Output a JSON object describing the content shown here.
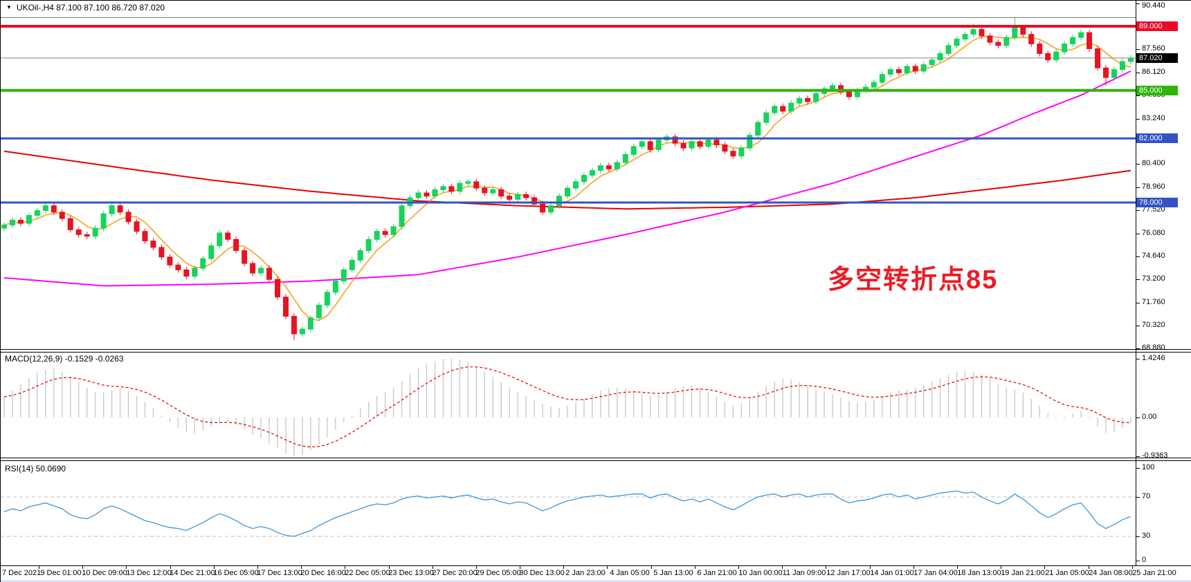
{
  "title": {
    "dropdown_icon": "▼",
    "symbol_line": "UKOil-,H4  87.100 87.100 86.720 87.020"
  },
  "annotation": {
    "text": "多空转折点85",
    "color": "#ed1c24"
  },
  "colors": {
    "candle_up": "#17d35c",
    "candle_down": "#e51420",
    "ma_fast": "#f7a21b",
    "ma_mid": "#ff00ff",
    "ma_slow": "#e60000",
    "hline_red": "#ec0927",
    "hline_green": "#2fb50a",
    "hline_blue": "#3352c8",
    "current_price_line": "#808080",
    "macd_histogram": "#c9c9c9",
    "macd_signal": "#e00000",
    "rsi_line": "#3a96dd",
    "rsi_levels": "#c0c0c0",
    "label_box_black": "#000000"
  },
  "chart_data": {
    "type": "candlestick",
    "symbol": "UKOil",
    "timeframe": "H4",
    "ohlc_current": {
      "open": 87.1,
      "high": 87.1,
      "low": 86.72,
      "close": 87.02
    },
    "current_price": {
      "value": 87.02,
      "label": "87.020"
    },
    "price_axis_ticks": [
      {
        "label": "90.440",
        "value": 90.44
      },
      {
        "label": "87.560",
        "value": 87.56
      },
      {
        "label": "86.120",
        "value": 86.12
      },
      {
        "label": "84.680",
        "value": 84.68
      },
      {
        "label": "83.240",
        "value": 83.24
      },
      {
        "label": "81.840",
        "value": 81.84
      },
      {
        "label": "80.400",
        "value": 80.4
      },
      {
        "label": "78.960",
        "value": 78.96
      },
      {
        "label": "77.520",
        "value": 77.52
      },
      {
        "label": "76.080",
        "value": 76.08
      },
      {
        "label": "74.640",
        "value": 74.64
      },
      {
        "label": "73.200",
        "value": 73.2
      },
      {
        "label": "71.760",
        "value": 71.76
      },
      {
        "label": "70.320",
        "value": 70.32
      },
      {
        "label": "68.880",
        "value": 68.88
      }
    ],
    "hlines": [
      {
        "price": 89.0,
        "label": "89.000",
        "color": "#ec0927",
        "thickness": 4
      },
      {
        "price": 85.0,
        "label": "85.000",
        "color": "#2fb50a",
        "thickness": 4
      },
      {
        "price": 82.0,
        "label": "82.000",
        "color": "#3352c8",
        "thickness": 3
      },
      {
        "price": 78.0,
        "label": "78.000",
        "color": "#3352c8",
        "thickness": 3
      }
    ],
    "x_labels": [
      "7 Dec 2021",
      "9 Dec 01:00",
      "10 Dec 09:00",
      "13 Dec 12:00",
      "14 Dec 21:00",
      "16 Dec 05:00",
      "17 Dec 13:00",
      "20 Dec 16:00",
      "22 Dec 05:00",
      "23 Dec 13:00",
      "27 Dec 20:00",
      "29 Dec 05:00",
      "30 Dec 13:00",
      "2 Jan 23:00",
      "4 Jan 05:00",
      "5 Jan 13:00",
      "6 Jan 21:00",
      "10 Jan 00:00",
      "11 Jan 09:00",
      "12 Jan 17:00",
      "14 Jan 01:00",
      "17 Jan 04:00",
      "18 Jan 13:00",
      "19 Jan 21:00",
      "21 Jan 05:00",
      "24 Jan 08:00",
      "25 Jan 21:00"
    ],
    "closes": [
      76.6,
      76.9,
      76.7,
      77.2,
      77.5,
      77.8,
      77.4,
      77.0,
      76.3,
      76.0,
      75.9,
      76.4,
      77.3,
      77.8,
      77.4,
      76.8,
      76.2,
      75.6,
      75.2,
      74.6,
      74.1,
      73.8,
      73.4,
      73.9,
      74.5,
      75.3,
      76.1,
      75.7,
      75.0,
      74.2,
      73.6,
      73.9,
      73.2,
      72.1,
      70.9,
      69.8,
      70.1,
      70.8,
      71.6,
      72.4,
      73.1,
      73.8,
      74.4,
      75.0,
      75.7,
      76.2,
      76.0,
      76.5,
      77.8,
      78.3,
      78.6,
      78.4,
      78.8,
      79.0,
      78.7,
      79.2,
      79.3,
      78.9,
      78.6,
      78.8,
      78.4,
      78.2,
      78.5,
      78.3,
      77.9,
      77.4,
      77.8,
      78.4,
      78.9,
      79.3,
      79.7,
      80.0,
      80.3,
      80.1,
      80.5,
      81.0,
      81.5,
      81.8,
      81.3,
      81.9,
      82.1,
      81.7,
      81.4,
      81.8,
      81.5,
      81.9,
      81.6,
      81.2,
      80.9,
      81.4,
      82.2,
      83.0,
      83.6,
      84.0,
      83.7,
      84.2,
      84.5,
      84.3,
      84.8,
      85.1,
      85.3,
      84.9,
      84.6,
      85.0,
      85.2,
      85.5,
      86.0,
      86.3,
      86.1,
      86.5,
      86.2,
      86.6,
      86.9,
      87.3,
      87.8,
      88.2,
      88.5,
      88.8,
      88.4,
      88.0,
      87.8,
      88.3,
      88.9,
      88.5,
      87.9,
      87.3,
      86.9,
      87.4,
      87.9,
      88.3,
      88.6,
      87.6,
      86.4,
      85.8,
      86.3,
      86.8,
      87.02
    ],
    "wick": 0.18,
    "wick_overrides": {
      "35": {
        "low": 69.4
      },
      "117": {
        "high": 89.15
      },
      "122": {
        "high": 89.85
      },
      "133": {
        "low": 85.3
      }
    },
    "ma_mid_anchors": [
      [
        0,
        73.3
      ],
      [
        12,
        72.8
      ],
      [
        25,
        72.9
      ],
      [
        37,
        73.1
      ],
      [
        50,
        73.5
      ],
      [
        62,
        74.6
      ],
      [
        75,
        76.0
      ],
      [
        87,
        77.4
      ],
      [
        100,
        79.2
      ],
      [
        112,
        81.2
      ],
      [
        118,
        82.2
      ],
      [
        124,
        83.5
      ],
      [
        130,
        84.7
      ],
      [
        136,
        86.2
      ]
    ],
    "ma_slow_anchors": [
      [
        0,
        81.2
      ],
      [
        15,
        80.1
      ],
      [
        25,
        79.4
      ],
      [
        37,
        78.7
      ],
      [
        50,
        78.1
      ],
      [
        62,
        77.8
      ],
      [
        75,
        77.6
      ],
      [
        87,
        77.7
      ],
      [
        100,
        77.9
      ],
      [
        110,
        78.3
      ],
      [
        120,
        78.9
      ],
      [
        128,
        79.4
      ],
      [
        136,
        80.0
      ]
    ],
    "indicators": {
      "macd": {
        "label": "MACD(12,26,9) -0.1529 -0.0263",
        "current_macd": -0.1529,
        "current_signal": -0.0263,
        "axis": [
          {
            "label": "1.4246",
            "value": 1.4246
          },
          {
            "label": "0.00",
            "value": 0.0
          },
          {
            "label": "-0.9363",
            "value": -0.9363
          }
        ],
        "values": [
          0.5,
          0.65,
          0.8,
          0.95,
          1.08,
          1.15,
          1.18,
          1.1,
          0.98,
          0.85,
          0.72,
          0.62,
          0.6,
          0.66,
          0.7,
          0.64,
          0.52,
          0.38,
          0.22,
          0.05,
          -0.12,
          -0.25,
          -0.35,
          -0.38,
          -0.32,
          -0.22,
          -0.12,
          -0.1,
          -0.18,
          -0.3,
          -0.42,
          -0.5,
          -0.62,
          -0.75,
          -0.88,
          -0.9363,
          -0.9,
          -0.8,
          -0.65,
          -0.48,
          -0.3,
          -0.12,
          0.05,
          0.22,
          0.38,
          0.52,
          0.62,
          0.72,
          0.88,
          1.05,
          1.18,
          1.28,
          1.36,
          1.41,
          1.4246,
          1.4,
          1.33,
          1.22,
          1.1,
          0.98,
          0.85,
          0.72,
          0.62,
          0.52,
          0.42,
          0.32,
          0.26,
          0.24,
          0.28,
          0.36,
          0.46,
          0.56,
          0.65,
          0.7,
          0.72,
          0.7,
          0.65,
          0.58,
          0.52,
          0.55,
          0.62,
          0.7,
          0.76,
          0.78,
          0.72,
          0.62,
          0.5,
          0.38,
          0.3,
          0.35,
          0.48,
          0.62,
          0.76,
          0.88,
          0.94,
          0.92,
          0.85,
          0.76,
          0.68,
          0.62,
          0.56,
          0.48,
          0.4,
          0.36,
          0.38,
          0.44,
          0.52,
          0.6,
          0.65,
          0.68,
          0.72,
          0.78,
          0.86,
          0.95,
          1.04,
          1.1,
          1.12,
          1.1,
          1.04,
          0.94,
          0.82,
          0.72,
          0.68,
          0.6,
          0.45,
          0.28,
          0.1,
          -0.02,
          0.02,
          0.1,
          0.15,
          0.02,
          -0.22,
          -0.38,
          -0.35,
          -0.25,
          -0.1529
        ]
      },
      "rsi": {
        "label": "RSI(14) 50.0690",
        "current": 50.069,
        "levels": [
          70,
          30
        ],
        "axis": [
          {
            "label": "100",
            "value": 100
          },
          {
            "label": "70",
            "value": 70
          },
          {
            "label": "30",
            "value": 30
          },
          {
            "label": "0",
            "value": 0
          }
        ],
        "values": [
          55,
          58,
          56,
          60,
          62,
          64,
          61,
          58,
          52,
          49,
          48,
          52,
          58,
          61,
          58,
          54,
          50,
          46,
          44,
          41,
          39,
          38,
          36,
          40,
          44,
          49,
          53,
          50,
          46,
          41,
          38,
          40,
          38,
          34,
          31,
          30,
          33,
          36,
          41,
          45,
          49,
          52,
          55,
          58,
          61,
          63,
          62,
          64,
          68,
          70,
          71,
          69,
          70,
          71,
          69,
          71,
          72,
          69,
          67,
          68,
          65,
          63,
          65,
          64,
          60,
          56,
          59,
          63,
          66,
          68,
          70,
          71,
          72,
          70,
          71,
          72,
          73,
          73,
          69,
          72,
          73,
          69,
          66,
          68,
          65,
          68,
          64,
          60,
          57,
          61,
          66,
          70,
          72,
          73,
          70,
          72,
          73,
          70,
          72,
          73,
          73,
          68,
          64,
          66,
          67,
          69,
          72,
          73,
          70,
          72,
          68,
          70,
          72,
          74,
          75,
          76,
          74,
          75,
          70,
          66,
          63,
          67,
          73,
          68,
          61,
          54,
          49,
          53,
          58,
          62,
          64,
          54,
          43,
          38,
          42,
          47,
          50.069
        ]
      }
    }
  }
}
